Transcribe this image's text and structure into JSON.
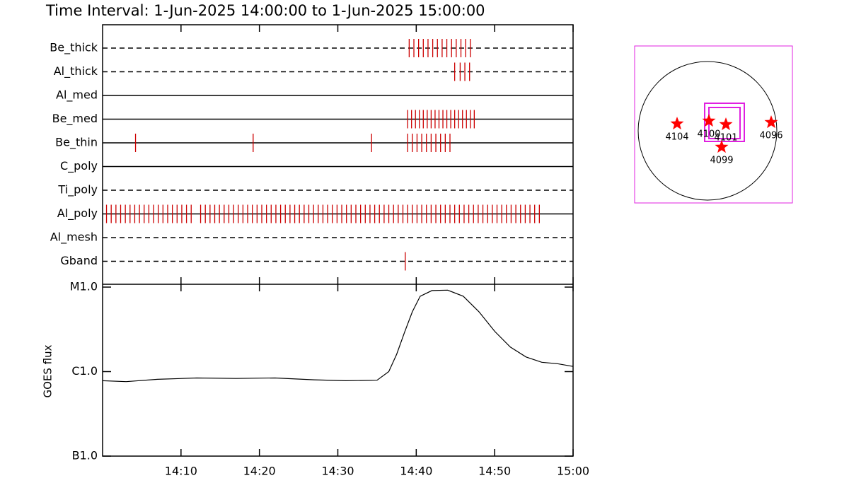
{
  "chart_data": [
    {
      "type": "timeline",
      "title": "Time Interval:  1-Jun-2025 14:00:00 to  1-Jun-2025 15:00:00",
      "xlim": [
        840,
        900
      ],
      "event_color": "#cc0000",
      "series": [
        {
          "name": "Be_thick",
          "line": "dashed",
          "values": [
            879.1,
            879.7,
            880.3,
            880.9,
            881.5,
            882.1,
            882.7,
            883.3,
            883.9,
            884.5,
            885.1,
            885.7,
            886.3,
            886.9
          ]
        },
        {
          "name": "Al_thick",
          "line": "dashed",
          "values": [
            884.9,
            885.6,
            886.2,
            886.8
          ]
        },
        {
          "name": "Al_med",
          "line": "solid",
          "values": []
        },
        {
          "name": "Be_med",
          "line": "solid",
          "values": [
            878.9,
            879.4,
            879.9,
            880.4,
            880.9,
            881.4,
            881.9,
            882.4,
            882.9,
            883.4,
            883.9,
            884.4,
            884.9,
            885.4,
            885.9,
            886.4,
            886.9,
            887.4
          ]
        },
        {
          "name": "Be_thin",
          "line": "solid",
          "values": [
            844.2,
            859.2,
            874.3,
            878.9,
            879.5,
            880.1,
            880.7,
            881.3,
            881.9,
            882.5,
            883.1,
            883.7,
            884.3
          ]
        },
        {
          "name": "C_poly",
          "line": "solid",
          "values": []
        },
        {
          "name": "Ti_poly",
          "line": "dashed",
          "values": []
        },
        {
          "name": "Al_poly",
          "line": "solid",
          "values": [
            840.5,
            841.1,
            841.7,
            842.3,
            842.9,
            843.5,
            844.1,
            844.7,
            845.3,
            845.9,
            846.5,
            847.1,
            847.7,
            848.3,
            848.9,
            849.5,
            850.1,
            850.7,
            851.3,
            852.5,
            853.1,
            853.7,
            854.3,
            854.9,
            855.5,
            856.1,
            856.7,
            857.3,
            857.9,
            858.5,
            859.1,
            859.7,
            860.3,
            860.9,
            861.5,
            862.1,
            862.7,
            863.3,
            863.9,
            864.5,
            865.1,
            865.7,
            866.3,
            866.9,
            867.5,
            868.1,
            868.7,
            869.3,
            869.9,
            870.5,
            871.1,
            871.7,
            872.3,
            872.9,
            873.5,
            874.1,
            874.7,
            875.3,
            875.9,
            876.5,
            877.1,
            877.7,
            878.3,
            878.9,
            879.5,
            880.1,
            880.7,
            881.3,
            881.9,
            882.5,
            883.1,
            883.7,
            884.3,
            884.9,
            885.5,
            886.1,
            886.7,
            887.3,
            887.9,
            888.5,
            889.1,
            889.7,
            890.3,
            890.9,
            891.5,
            892.1,
            892.7,
            893.3,
            893.9,
            894.5,
            895.1,
            895.7
          ]
        },
        {
          "name": "Al_mesh",
          "line": "dashed",
          "values": []
        },
        {
          "name": "Gband",
          "line": "dashed",
          "values": [
            878.6
          ]
        }
      ]
    },
    {
      "type": "line",
      "y_label": "GOES flux",
      "log_y": true,
      "color": "#000000",
      "x": [
        840,
        843,
        847,
        852,
        857,
        862,
        867,
        871,
        875,
        876.5,
        877.5,
        878.5,
        879.5,
        880.5,
        882,
        884,
        886,
        888,
        890,
        892,
        894,
        896,
        898,
        900
      ],
      "values": [
        7.8e-07,
        7.6e-07,
        8.1e-07,
        8.4e-07,
        8.3e-07,
        8.4e-07,
        8e-07,
        7.8e-07,
        7.9e-07,
        1e-06,
        1.6e-06,
        2.9e-06,
        5.1e-06,
        7.8e-06,
        9.1e-06,
        9.2e-06,
        7.8e-06,
        5.1e-06,
        3e-06,
        1.95e-06,
        1.49e-06,
        1.29e-06,
        1.24e-06,
        1.15e-06
      ],
      "xlim": [
        840,
        900
      ],
      "xticks": [
        {
          "value": 850,
          "label": "14:10"
        },
        {
          "value": 860,
          "label": "14:20"
        },
        {
          "value": 870,
          "label": "14:30"
        },
        {
          "value": 880,
          "label": "14:40"
        },
        {
          "value": 890,
          "label": "14:50"
        },
        {
          "value": 900,
          "label": "15:00"
        }
      ],
      "ylim": [
        1e-07,
        1e-05
      ],
      "yticks": [
        {
          "value": 1e-07,
          "label": "B1.0"
        },
        {
          "value": 1e-06,
          "label": "C1.0"
        },
        {
          "value": 1e-05,
          "label": "M1.0"
        }
      ]
    }
  ],
  "sun_map": {
    "regions": [
      "4104",
      "4100",
      "4101",
      "4096",
      "4099"
    ]
  }
}
